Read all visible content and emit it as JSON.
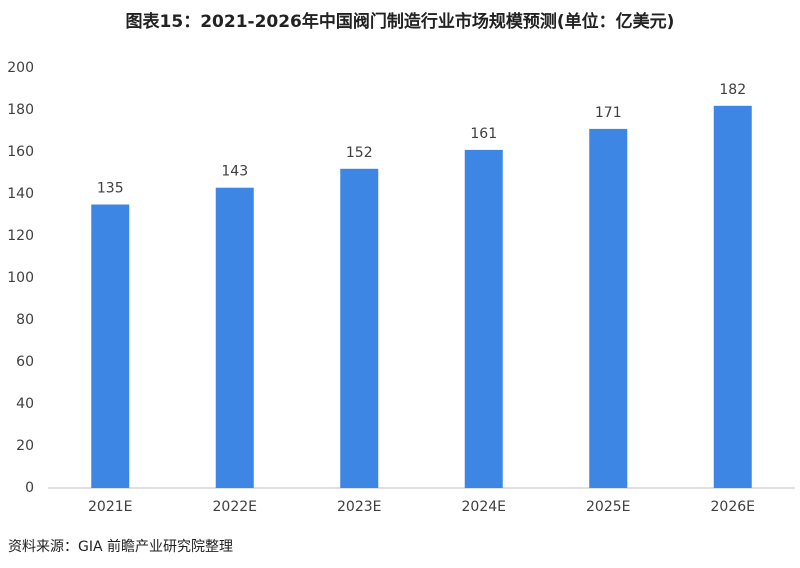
{
  "chart_data": {
    "type": "bar",
    "title": "图表15：2021-2026年中国阀门制造行业市场规模预测(单位：亿美元)",
    "categories": [
      "2021E",
      "2022E",
      "2023E",
      "2024E",
      "2025E",
      "2026E"
    ],
    "values": [
      135,
      143,
      152,
      161,
      171,
      182
    ],
    "color": "#3e86e3",
    "ylim": [
      0,
      200
    ],
    "yticks": [
      0,
      20,
      40,
      60,
      80,
      100,
      120,
      140,
      160,
      180,
      200
    ],
    "grid": false,
    "source": "资料来源：GIA 前瞻产业研究院整理"
  }
}
